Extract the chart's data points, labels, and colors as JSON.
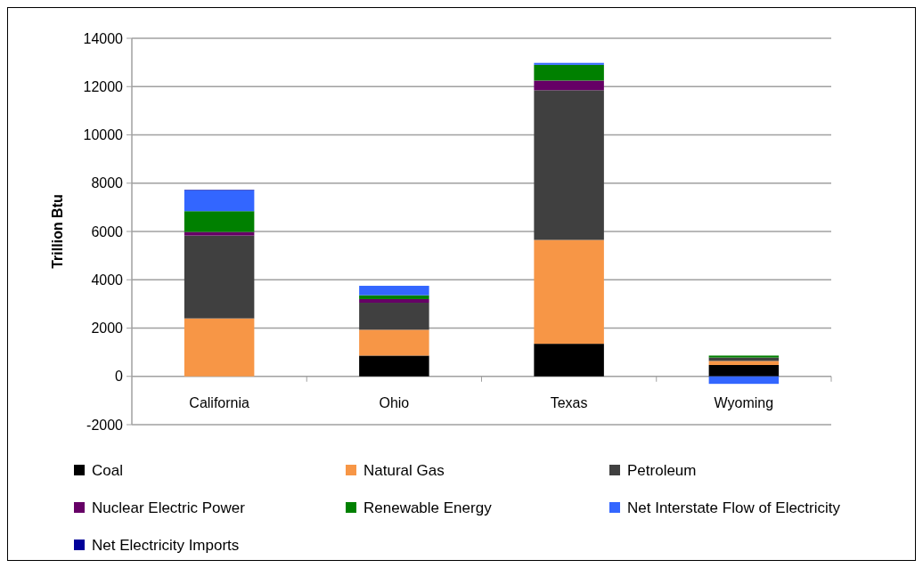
{
  "chart_data": {
    "type": "bar",
    "stacked": true,
    "ylabel": "Trillion Btu",
    "categories": [
      "California",
      "Ohio",
      "Texas",
      "Wyoming"
    ],
    "series": [
      {
        "name": "Coal",
        "color": "#000000",
        "values": [
          0,
          860,
          1350,
          470
        ]
      },
      {
        "name": "Natural Gas",
        "color": "#f79646",
        "values": [
          2400,
          1070,
          4300,
          170
        ]
      },
      {
        "name": "Petroleum",
        "color": "#404040",
        "values": [
          3430,
          1120,
          6200,
          140
        ]
      },
      {
        "name": "Nuclear Electric Power",
        "color": "#660066",
        "values": [
          150,
          150,
          400,
          0
        ]
      },
      {
        "name": "Renewable Energy",
        "color": "#008000",
        "values": [
          860,
          160,
          650,
          80
        ]
      },
      {
        "name": "Net Interstate Flow of Electricity",
        "color": "#3366ff",
        "values": [
          870,
          390,
          80,
          -310
        ]
      },
      {
        "name": "Net Electricity Imports",
        "color": "#000099",
        "values": [
          20,
          0,
          0,
          0
        ]
      }
    ],
    "ylim": [
      -2000,
      14000
    ],
    "yticks": [
      -2000,
      0,
      2000,
      4000,
      6000,
      8000,
      10000,
      12000,
      14000
    ],
    "grid": "y",
    "legend": "bottom"
  }
}
